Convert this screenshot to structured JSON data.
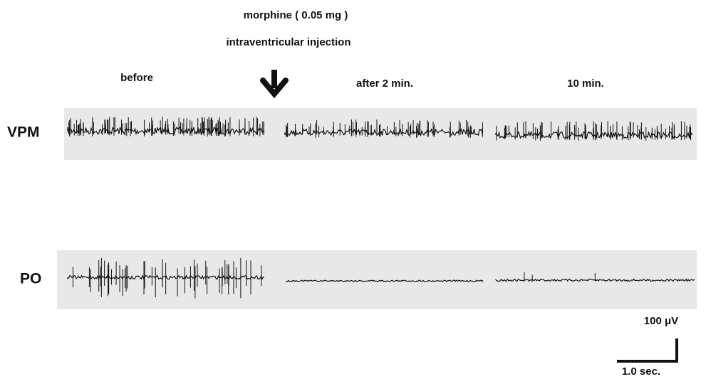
{
  "header": {
    "drug": "morphine ( 0.05 mg )",
    "route": "intraventricular injection"
  },
  "conditions": [
    "before",
    "after 2 min.",
    "10 min."
  ],
  "channels": [
    "VPM",
    "PO"
  ],
  "scale_bar": {
    "amplitude": "100 μV",
    "time": "1.0 sec."
  }
}
